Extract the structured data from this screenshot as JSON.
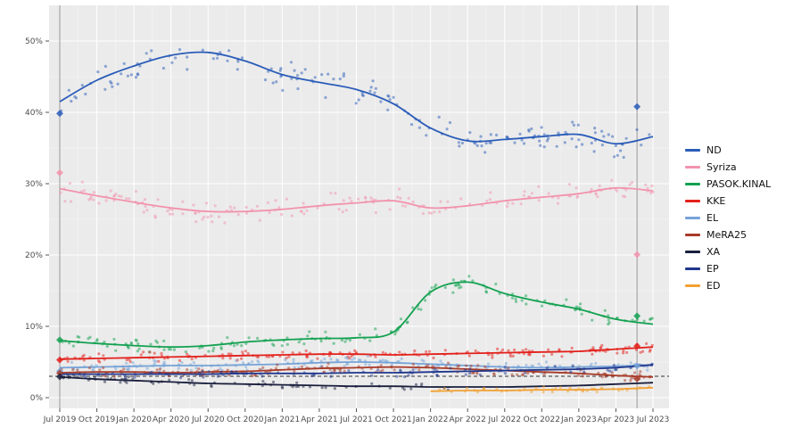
{
  "legend": {
    "items": [
      {
        "label": "ND",
        "color": "#2a5cb8"
      },
      {
        "label": "Syriza",
        "color": "#f293ad"
      },
      {
        "label": "PASOK.KINAL",
        "color": "#12a150"
      },
      {
        "label": "KKE",
        "color": "#e3201b"
      },
      {
        "label": "EL",
        "color": "#76a3d8"
      },
      {
        "label": "MeRA25",
        "color": "#a83a28"
      },
      {
        "label": "XA",
        "color": "#1a1f3d"
      },
      {
        "label": "EP",
        "color": "#20368c"
      },
      {
        "label": "ED",
        "color": "#f2a134"
      }
    ]
  },
  "chart_data": {
    "type": "scatter",
    "title": "",
    "xlabel": "",
    "ylabel": "",
    "grid": true,
    "panel_color": "#ebebeb",
    "grid_color": "#ffffff",
    "legend_position": "right",
    "x_tick_labels": [
      "Jul 2019",
      "Oct 2019",
      "Jan 2020",
      "Apr 2020",
      "Jul 2020",
      "Oct 2020",
      "Jan 2021",
      "Apr 2021",
      "Jul 2021",
      "Oct 2021",
      "Jan 2022",
      "Apr 2022",
      "Jul 2022",
      "Oct 2022",
      "Jan 2023",
      "Apr 2023",
      "Jul 2023"
    ],
    "y_tick_labels": [
      "0%",
      "10%",
      "20%",
      "30%",
      "40%",
      "50%"
    ],
    "y_tick_values": [
      0,
      10,
      20,
      30,
      40,
      50
    ],
    "ylim": [
      -1.5,
      55
    ],
    "threshold_percent": 3,
    "elections": [
      {
        "x_index": 0,
        "label": "Jul 2019"
      },
      {
        "x_index": 15.57,
        "label": "May 2023"
      }
    ],
    "series": [
      {
        "name": "ND",
        "color": "#2a5cb8",
        "jitter": 2.3,
        "points": 175,
        "scatter_range": [
          0,
          16
        ],
        "trend": [
          41.5,
          44.5,
          46.5,
          48.0,
          48.4,
          47.2,
          45.3,
          44.2,
          43.2,
          41.2,
          37.8,
          36.0,
          36.2,
          36.6,
          36.9,
          35.6,
          36.6
        ],
        "election_start": 39.85,
        "election_end": 40.79
      },
      {
        "name": "Syriza",
        "color": "#f293ad",
        "jitter": 1.9,
        "points": 175,
        "scatter_range": [
          0,
          16
        ],
        "trend": [
          29.3,
          28.3,
          27.4,
          26.6,
          26.1,
          26.1,
          26.4,
          26.9,
          27.3,
          27.6,
          26.6,
          26.9,
          27.6,
          28.1,
          28.6,
          29.4,
          29.0
        ],
        "election_start": 31.53,
        "election_end": 20.07
      },
      {
        "name": "PASOK.KINAL",
        "color": "#12a150",
        "jitter": 1.1,
        "points": 175,
        "scatter_range": [
          0,
          16
        ],
        "trend": [
          8.0,
          7.6,
          7.3,
          7.1,
          7.3,
          7.8,
          8.1,
          8.3,
          8.4,
          9.2,
          14.8,
          16.2,
          14.6,
          13.4,
          12.4,
          11.0,
          10.3
        ],
        "election_start": 8.1,
        "election_end": 11.46
      },
      {
        "name": "KKE",
        "color": "#e3201b",
        "jitter": 0.8,
        "points": 170,
        "scatter_range": [
          0,
          16
        ],
        "trend": [
          5.4,
          5.5,
          5.6,
          5.7,
          5.8,
          5.9,
          6.0,
          6.1,
          6.1,
          6.0,
          6.1,
          6.2,
          6.3,
          6.4,
          6.5,
          6.8,
          7.1
        ],
        "election_start": 5.3,
        "election_end": 7.23
      },
      {
        "name": "EL",
        "color": "#76a3d8",
        "jitter": 0.9,
        "points": 160,
        "scatter_range": [
          0,
          16
        ],
        "trend": [
          4.2,
          4.3,
          4.4,
          4.5,
          4.5,
          4.6,
          4.7,
          4.9,
          5.0,
          4.9,
          4.7,
          4.5,
          4.3,
          4.2,
          4.3,
          4.4,
          4.6
        ],
        "election_start": 3.7,
        "election_end": 4.45
      },
      {
        "name": "MeRA25",
        "color": "#a83a28",
        "jitter": 0.9,
        "points": 160,
        "scatter_range": [
          0,
          16
        ],
        "trend": [
          3.5,
          3.6,
          3.6,
          3.5,
          3.6,
          3.7,
          3.9,
          4.1,
          4.2,
          4.3,
          4.2,
          4.0,
          3.8,
          3.6,
          3.4,
          3.1,
          2.9
        ],
        "election_start": 3.44,
        "election_end": 2.64
      },
      {
        "name": "XA",
        "color": "#1a1f3d",
        "jitter": 0.6,
        "points": 70,
        "scatter_range": [
          0,
          10.5
        ],
        "trend": [
          2.9,
          2.6,
          2.4,
          2.2,
          2.0,
          1.9,
          1.8,
          1.7,
          1.6,
          1.6,
          1.5,
          1.5,
          1.5,
          1.6,
          1.7,
          1.9,
          2.1
        ],
        "election_start": 2.93,
        "election_end": null
      },
      {
        "name": "EP",
        "color": "#20368c",
        "jitter": 0.7,
        "points": 90,
        "scatter_range": [
          0,
          16
        ],
        "trend": [
          3.3,
          3.3,
          3.3,
          3.3,
          3.3,
          3.4,
          3.4,
          3.4,
          3.5,
          3.5,
          3.6,
          3.7,
          3.8,
          3.9,
          4.0,
          4.2,
          4.6
        ],
        "election_start": null,
        "election_end": null
      },
      {
        "name": "ED",
        "color": "#f2a134",
        "jitter": 0.45,
        "points": 45,
        "scatter_range": [
          10,
          16
        ],
        "trend": [
          null,
          null,
          null,
          null,
          null,
          null,
          null,
          null,
          null,
          null,
          0.9,
          1.0,
          1.0,
          1.1,
          1.1,
          1.2,
          1.4
        ],
        "election_start": null,
        "election_end": null
      }
    ]
  }
}
